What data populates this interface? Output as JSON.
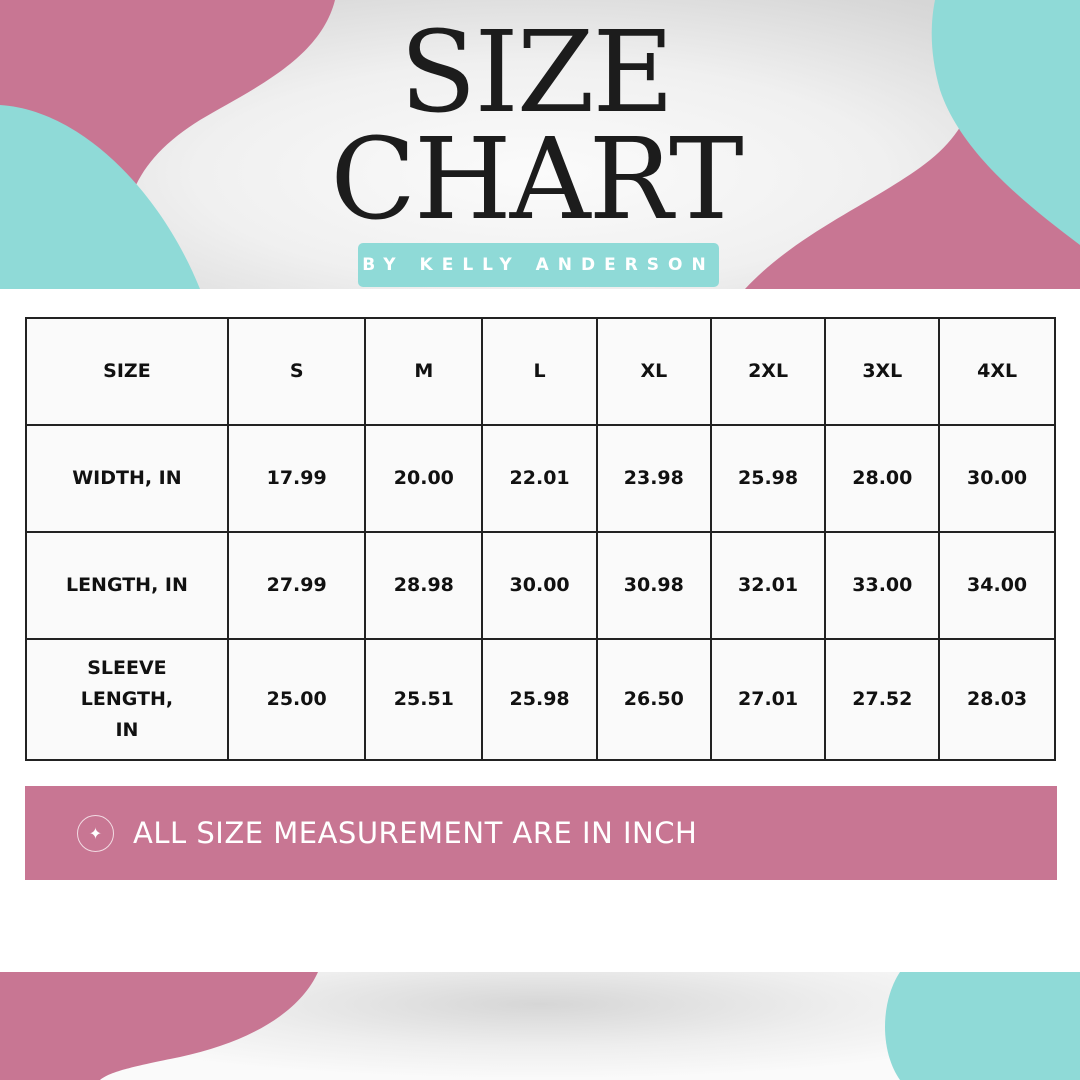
{
  "header": {
    "title_line1": "SIZE",
    "title_line2": "CHART",
    "byline": "BY KELLY ANDERSON"
  },
  "colors": {
    "pink": "#c87693",
    "teal": "#8fdad7"
  },
  "table": {
    "columns": [
      "SIZE",
      "S",
      "M",
      "L",
      "XL",
      "2XL",
      "3XL",
      "4XL"
    ],
    "rows": [
      {
        "label": "WIDTH, IN",
        "values": [
          "17.99",
          "20.00",
          "22.01",
          "23.98",
          "25.98",
          "28.00",
          "30.00"
        ]
      },
      {
        "label": "LENGTH, IN",
        "values": [
          "27.99",
          "28.98",
          "30.00",
          "30.98",
          "32.01",
          "33.00",
          "34.00"
        ]
      },
      {
        "label": "SLEEVE LENGTH, IN",
        "values": [
          "25.00",
          "25.51",
          "25.98",
          "26.50",
          "27.01",
          "27.52",
          "28.03"
        ]
      }
    ]
  },
  "note": {
    "icon": "sparkle-icon",
    "text": "ALL SIZE MEASUREMENT ARE IN INCH"
  }
}
